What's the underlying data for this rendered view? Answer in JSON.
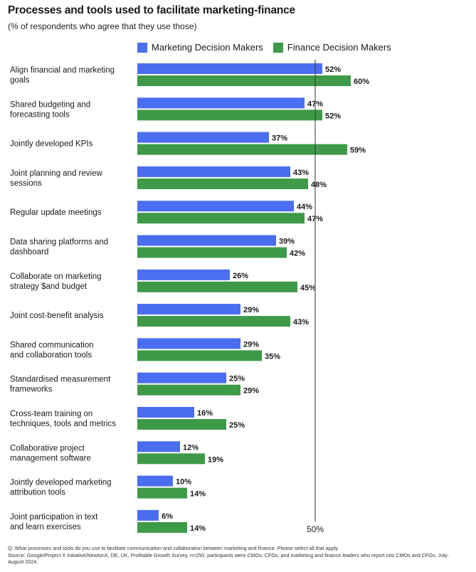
{
  "title": "Processes and tools used to facilitate marketing-finance",
  "subtitle": "(% of respondents who agree that they use those)",
  "colors": {
    "marketing": "#4a6ef0",
    "finance": "#3e9a48",
    "refline": "#333333"
  },
  "chart_data": {
    "type": "bar",
    "orientation": "horizontal",
    "categories": [
      [
        "Align financial and marketing",
        "goals"
      ],
      [
        "Shared budgeting and",
        "forecasting tools"
      ],
      [
        "Jointly developed KPIs"
      ],
      [
        "Joint planning and review",
        "sessions"
      ],
      [
        "Regular update meetings"
      ],
      [
        "Data sharing platforms and",
        "dashboard"
      ],
      [
        "Collaborate on marketing",
        "strategy $and budget"
      ],
      [
        "Joint cost-benefit analysis"
      ],
      [
        "Shared communication",
        "and collaboration tools"
      ],
      [
        "Standardised measurement",
        "frameworks"
      ],
      [
        "Cross-team training on",
        "techniques, tools and metrics"
      ],
      [
        "Collaborative project",
        "management software"
      ],
      [
        "Jointly developed marketing",
        "attribution tools"
      ],
      [
        "Joint participation in text",
        "and learn exercises"
      ]
    ],
    "series": [
      {
        "name": "Marketing Decision Makers",
        "values": [
          52,
          47,
          37,
          43,
          44,
          39,
          26,
          29,
          29,
          25,
          16,
          12,
          10,
          6
        ],
        "labels": [
          "52%",
          "47%",
          "37%",
          "43%",
          "44%",
          "39%",
          "26%",
          "29%",
          "29%",
          "25%",
          "16%",
          "12%",
          "10%",
          "6%"
        ]
      },
      {
        "name": "Finance Decision Makers",
        "values": [
          60,
          52,
          59,
          48,
          47,
          42,
          45,
          43,
          35,
          29,
          25,
          19,
          14,
          14
        ],
        "labels": [
          "60%",
          "52%",
          "59%",
          "48%",
          "47%",
          "42%",
          "45%",
          "43%",
          "35%",
          "29%",
          "25%",
          "19%",
          "14%",
          "14%"
        ]
      }
    ],
    "reference_line": {
      "value": 50,
      "label": "50%"
    },
    "xlim": [
      0,
      60
    ],
    "legend": "top",
    "grid": false
  },
  "footnote": [
    "Q: What processes and tools do you use to facilitate communication and collaboration between  marketing and finance. Please select all that apply.",
    "Source: Google/Project X Initiative/NewtonX, DE, UK, Profitable Growth Survey, n=250, participants were CMOs, CFOs, and marketing and finance leaders who report into CMOs and CFOs,  July-",
    "August 2024."
  ]
}
